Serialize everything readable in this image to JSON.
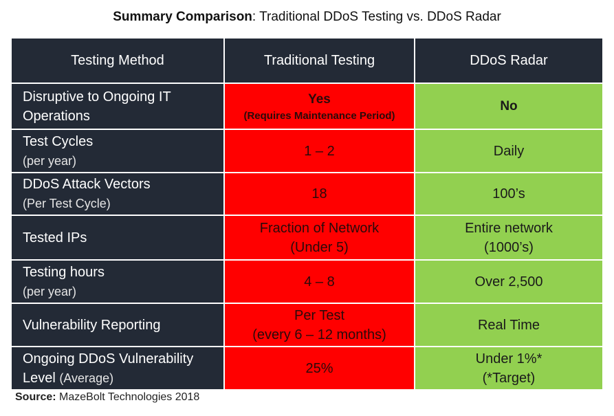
{
  "title": {
    "bold": "Summary Comparison",
    "rest": ": Traditional DDoS Testing vs. DDoS Radar"
  },
  "header": [
    "Testing Method",
    "Traditional Testing",
    "DDoS Radar"
  ],
  "rows": [
    {
      "label": "Disruptive to Ongoing IT Operations",
      "sub": "",
      "trad": "Yes",
      "trad_sub": "(Requires Maintenance Period)",
      "radar": "No",
      "radar_sub": ""
    },
    {
      "label": "Test Cycles",
      "sub": "(per year)",
      "trad": "1 – 2",
      "trad_sub": "",
      "radar": "Daily",
      "radar_sub": ""
    },
    {
      "label": "DDoS Attack Vectors",
      "sub": "(Per Test Cycle)",
      "trad": "18",
      "trad_sub": "",
      "radar": "100’s",
      "radar_sub": ""
    },
    {
      "label": "Tested IPs",
      "sub": "",
      "trad": "Fraction of Network",
      "trad_sub": "(Under 5)",
      "radar": "Entire network",
      "radar_sub": "(1000’s)"
    },
    {
      "label": "Testing hours",
      "sub": "(per year)",
      "trad": "4 – 8",
      "trad_sub": "",
      "radar": "Over 2,500",
      "radar_sub": ""
    },
    {
      "label": "Vulnerability Reporting",
      "sub": "",
      "trad": "Per Test",
      "trad_sub": "(every 6 – 12 months)",
      "radar": "Real Time",
      "radar_sub": ""
    },
    {
      "label": "Ongoing DDoS Vulnerability",
      "sub": "Level",
      "sub2": "(Average)",
      "trad": "25%",
      "trad_sub": "",
      "radar": "Under 1%*",
      "radar_sub": "(*Target)"
    }
  ],
  "source": {
    "bold": "Source:",
    "rest": " MazeBolt Technologies 2018"
  },
  "colors": {
    "dark": "#232a36",
    "red": "#ff0000",
    "green": "#92d050"
  }
}
